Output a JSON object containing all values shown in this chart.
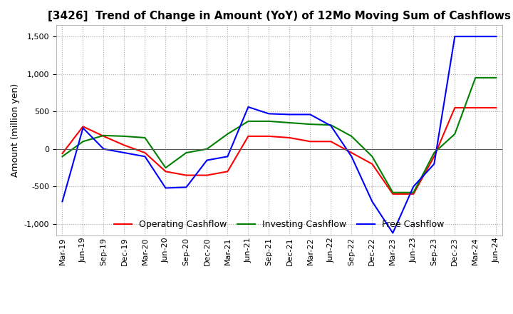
{
  "title": "[3426]  Trend of Change in Amount (YoY) of 12Mo Moving Sum of Cashflows",
  "ylabel": "Amount (million yen)",
  "ylim": [
    -1150,
    1650
  ],
  "yticks": [
    -1000,
    -500,
    0,
    500,
    1000,
    1500
  ],
  "x_labels": [
    "Mar-19",
    "Jun-19",
    "Sep-19",
    "Dec-19",
    "Mar-20",
    "Jun-20",
    "Sep-20",
    "Dec-20",
    "Mar-21",
    "Jun-21",
    "Sep-21",
    "Dec-21",
    "Mar-22",
    "Jun-22",
    "Sep-22",
    "Dec-22",
    "Mar-23",
    "Jun-23",
    "Sep-23",
    "Dec-23",
    "Mar-24",
    "Jun-24"
  ],
  "operating": [
    -60,
    300,
    170,
    50,
    -50,
    -300,
    -350,
    -350,
    -300,
    170,
    170,
    150,
    100,
    100,
    -50,
    -200,
    -600,
    -600,
    -100,
    550,
    550,
    550
  ],
  "investing": [
    -100,
    100,
    180,
    170,
    150,
    -250,
    -50,
    0,
    200,
    370,
    370,
    350,
    330,
    320,
    170,
    -100,
    -580,
    -580,
    -50,
    200,
    950,
    950
  ],
  "free": [
    -700,
    280,
    0,
    -50,
    -100,
    -520,
    -510,
    -150,
    -100,
    560,
    470,
    460,
    460,
    310,
    -100,
    -700,
    -1120,
    -500,
    -200,
    1500,
    1500,
    1500
  ],
  "operating_color": "#ff0000",
  "investing_color": "#008000",
  "free_color": "#0000ff",
  "background_color": "#ffffff",
  "grid_color": "#aaaaaa",
  "title_fontsize": 11,
  "label_fontsize": 9,
  "tick_fontsize": 8,
  "legend_fontsize": 9
}
